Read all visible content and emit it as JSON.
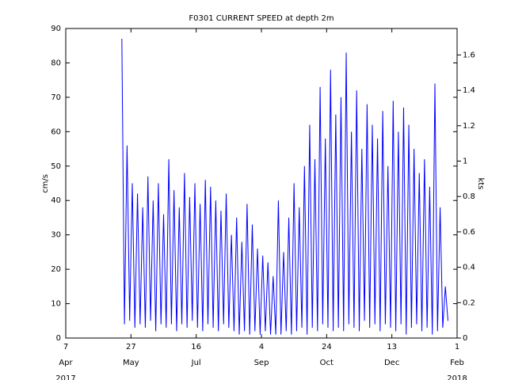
{
  "chart_data": {
    "type": "line",
    "title": "F0301 CURRENT SPEED at depth 2m",
    "ylabel": "cm/s",
    "y2label": "kts",
    "xlim": [
      "2017-04-07",
      "2018-02-01"
    ],
    "xticks": [
      {
        "value": "2017-04-07",
        "label": "7",
        "month": "Apr",
        "year": "2017"
      },
      {
        "value": "2017-05-27",
        "label": "27",
        "month": "May"
      },
      {
        "value": "2017-07-16",
        "label": "16",
        "month": "Jul"
      },
      {
        "value": "2017-09-04",
        "label": "4",
        "month": "Sep"
      },
      {
        "value": "2017-10-24",
        "label": "24",
        "month": "Oct"
      },
      {
        "value": "2017-12-13",
        "label": "13",
        "month": "Dec"
      },
      {
        "value": "2018-02-01",
        "label": "1",
        "month": "Feb",
        "year": "2018"
      }
    ],
    "ylim": [
      0,
      90
    ],
    "yticks": [
      0,
      10,
      20,
      30,
      40,
      50,
      60,
      70,
      80,
      90
    ],
    "y2lim": [
      0,
      1.7495
    ],
    "y2ticks": [
      0,
      0.2,
      0.4,
      0.6,
      0.8,
      1,
      1.2,
      1.4,
      1.6
    ],
    "x": [
      "2017-05-20",
      "2017-05-22",
      "2017-05-24",
      "2017-05-26",
      "2017-05-28",
      "2017-05-30",
      "2017-06-01",
      "2017-06-03",
      "2017-06-05",
      "2017-06-07",
      "2017-06-09",
      "2017-06-11",
      "2017-06-13",
      "2017-06-15",
      "2017-06-17",
      "2017-06-19",
      "2017-06-21",
      "2017-06-23",
      "2017-06-25",
      "2017-06-27",
      "2017-06-29",
      "2017-07-01",
      "2017-07-03",
      "2017-07-05",
      "2017-07-07",
      "2017-07-09",
      "2017-07-11",
      "2017-07-13",
      "2017-07-15",
      "2017-07-17",
      "2017-07-19",
      "2017-07-21",
      "2017-07-23",
      "2017-07-25",
      "2017-07-27",
      "2017-07-29",
      "2017-07-31",
      "2017-08-02",
      "2017-08-04",
      "2017-08-06",
      "2017-08-08",
      "2017-08-10",
      "2017-08-12",
      "2017-08-14",
      "2017-08-16",
      "2017-08-18",
      "2017-08-20",
      "2017-08-22",
      "2017-08-24",
      "2017-08-26",
      "2017-08-28",
      "2017-08-30",
      "2017-09-01",
      "2017-09-03",
      "2017-09-05",
      "2017-09-07",
      "2017-09-09",
      "2017-09-11",
      "2017-09-13",
      "2017-09-15",
      "2017-09-17",
      "2017-09-19",
      "2017-09-21",
      "2017-09-23",
      "2017-09-25",
      "2017-09-27",
      "2017-09-29",
      "2017-10-01",
      "2017-10-03",
      "2017-10-05",
      "2017-10-07",
      "2017-10-09",
      "2017-10-11",
      "2017-10-13",
      "2017-10-15",
      "2017-10-17",
      "2017-10-19",
      "2017-10-21",
      "2017-10-23",
      "2017-10-25",
      "2017-10-27",
      "2017-10-29",
      "2017-10-31",
      "2017-11-02",
      "2017-11-04",
      "2017-11-06",
      "2017-11-08",
      "2017-11-10",
      "2017-11-12",
      "2017-11-14",
      "2017-11-16",
      "2017-11-18",
      "2017-11-20",
      "2017-11-22",
      "2017-11-24",
      "2017-11-26",
      "2017-11-28",
      "2017-11-30",
      "2017-12-02",
      "2017-12-04",
      "2017-12-06",
      "2017-12-08",
      "2017-12-10",
      "2017-12-12",
      "2017-12-14",
      "2017-12-16",
      "2017-12-18",
      "2017-12-20",
      "2017-12-22",
      "2017-12-24",
      "2017-12-26",
      "2017-12-28",
      "2017-12-30",
      "2018-01-01",
      "2018-01-03",
      "2018-01-05",
      "2018-01-07",
      "2018-01-09",
      "2018-01-11",
      "2018-01-13",
      "2018-01-15",
      "2018-01-17",
      "2018-01-19",
      "2018-01-21",
      "2018-01-23",
      "2018-01-25"
    ],
    "series": [
      {
        "color": "#0000ff",
        "values": [
          87,
          4,
          56,
          5,
          45,
          3,
          42,
          4,
          38,
          3,
          47,
          5,
          40,
          2,
          45,
          4,
          36,
          3,
          52,
          4,
          43,
          2,
          38,
          4,
          48,
          3,
          41,
          5,
          45,
          3,
          39,
          2,
          46,
          4,
          44,
          3,
          40,
          2,
          37,
          4,
          42,
          3,
          30,
          2,
          35,
          1,
          28,
          2,
          39,
          1,
          33,
          2,
          26,
          1,
          24,
          2,
          22,
          1,
          18,
          1,
          40,
          1,
          25,
          2,
          35,
          1,
          45,
          2,
          38,
          3,
          50,
          1,
          62,
          3,
          52,
          2,
          73,
          4,
          58,
          3,
          78,
          2,
          65,
          3,
          70,
          2,
          83,
          4,
          60,
          3,
          72,
          2,
          55,
          5,
          68,
          3,
          62,
          4,
          58,
          2,
          66,
          4,
          50,
          3,
          69,
          2,
          60,
          4,
          67,
          1,
          62,
          3,
          55,
          4,
          48,
          2,
          52,
          3,
          44,
          1,
          74,
          2,
          38,
          3,
          15,
          5
        ]
      }
    ]
  }
}
